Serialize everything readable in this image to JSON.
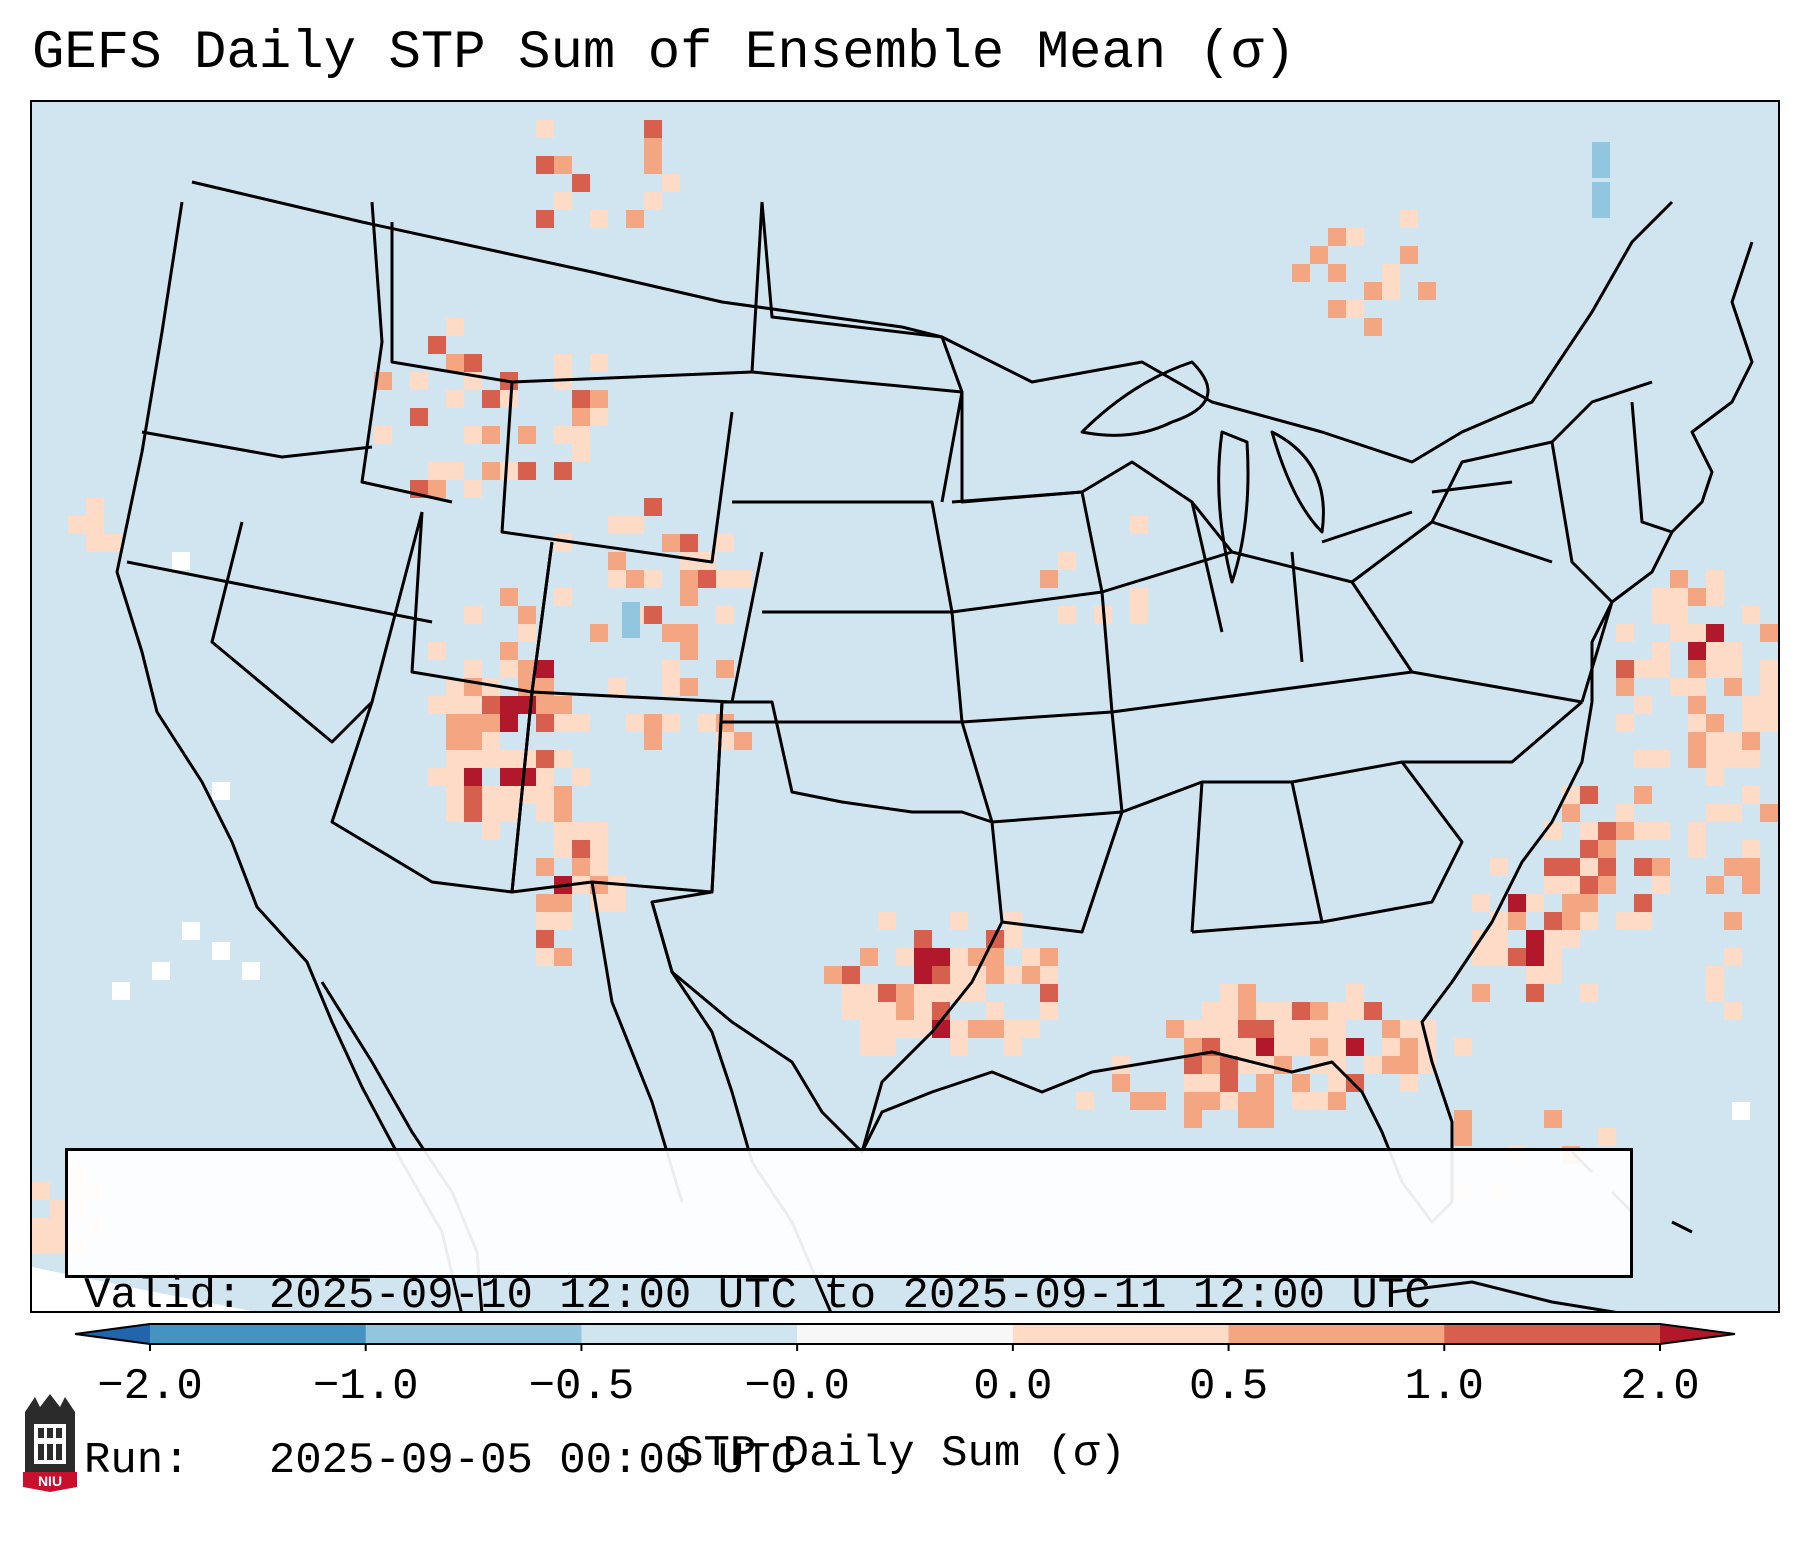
{
  "title": "GEFS Daily STP Sum of Ensemble Mean (σ)",
  "info": {
    "valid_line": "Valid: 2025-09-10 12:00 UTC to 2025-09-11 12:00 UTC",
    "run_line": "Run:   2025-09-05 00:00 UTC"
  },
  "colorbar": {
    "label": "STP Daily Sum (σ)",
    "ticks": [
      "−2.0",
      "−1.0",
      "−0.5",
      "−0.0",
      "0.0",
      "0.5",
      "1.0",
      "2.0"
    ],
    "bins": [
      {
        "range": [
          -2.0,
          -1.0
        ],
        "color": "#4393c3"
      },
      {
        "range": [
          -1.0,
          -0.5
        ],
        "color": "#92c5de"
      },
      {
        "range": [
          -0.5,
          -0.0
        ],
        "color": "#d1e5f0"
      },
      {
        "range": [
          -0.0,
          0.0
        ],
        "color": "#f7f7f7"
      },
      {
        "range": [
          0.0,
          0.5
        ],
        "color": "#fddbc7"
      },
      {
        "range": [
          0.5,
          1.0
        ],
        "color": "#f4a582"
      },
      {
        "range": [
          1.0,
          2.0
        ],
        "color": "#d6604d"
      }
    ],
    "under_color": "#2166ac",
    "over_color": "#b2182b"
  },
  "map": {
    "projection": "Lambert Conformal Conic – CONUS",
    "background_value_color": "#d1e5f0",
    "outside_domain_color": "#ffffff",
    "boundaries": [
      "US states",
      "Canadian provinces",
      "Mexican states",
      "coastlines"
    ]
  },
  "logo": {
    "text": "NIU",
    "color": "#c8102e"
  }
}
